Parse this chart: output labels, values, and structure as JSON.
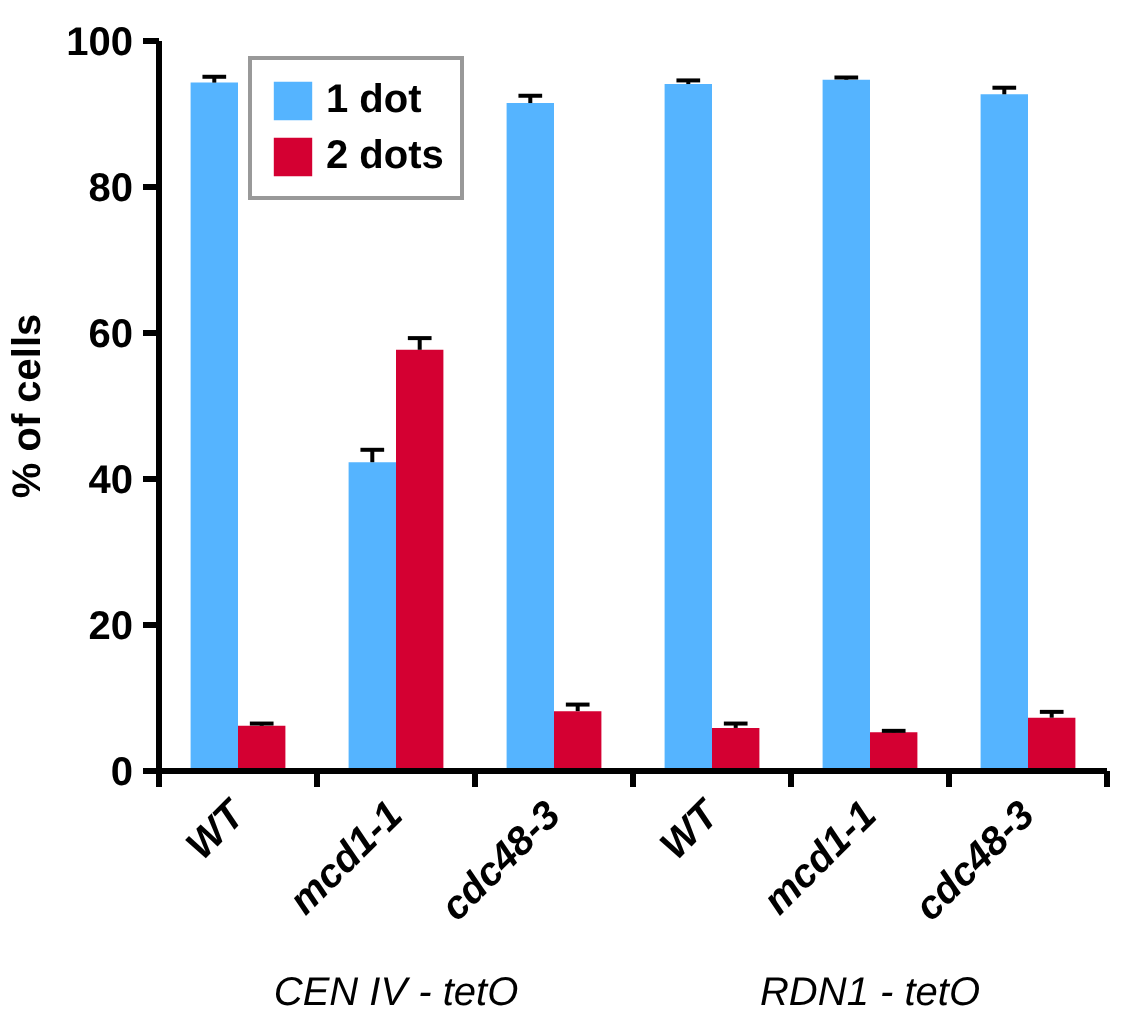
{
  "chart_data": {
    "type": "bar",
    "ylabel": "% of cells",
    "categories": [
      "WT",
      "mcd1-1",
      "cdc48-3",
      "WT",
      "mcd1-1",
      "cdc48-3"
    ],
    "series": [
      {
        "name": "1 dot",
        "color": "#55b4ff",
        "values": [
          94.3,
          42.3,
          91.5,
          94.1,
          94.7,
          92.7
        ],
        "errors": [
          0.8,
          1.7,
          1.0,
          0.5,
          0.3,
          0.9
        ]
      },
      {
        "name": "2 dots",
        "color": "#d40032",
        "values": [
          6.2,
          57.7,
          8.2,
          5.9,
          5.3,
          7.3
        ],
        "errors": [
          0.3,
          1.6,
          0.9,
          0.6,
          0.2,
          0.8
        ]
      }
    ],
    "annotations": [
      "CEN IV - tetO",
      "RDN1 - tetO"
    ],
    "ylim": [
      0,
      100
    ],
    "yticks": [
      0,
      20,
      40,
      60,
      80,
      100
    ],
    "grid": false,
    "legend": "top left"
  }
}
